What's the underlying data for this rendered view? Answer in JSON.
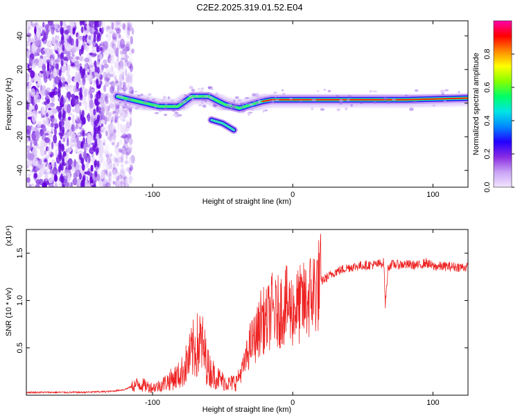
{
  "figure_title": "C2E2.2025.319.01.52.E04",
  "chart_data": [
    {
      "type": "heatmap",
      "xlabel": "Height of straight line (km)",
      "ylabel": "Frequency (Hz)",
      "xlim": [
        -190,
        125
      ],
      "ylim": [
        -50,
        49
      ],
      "xticks": [
        -100,
        0,
        100
      ],
      "yticks": [
        -40,
        -20,
        0,
        20,
        40
      ],
      "colorbar": {
        "label": "Normalized spectral amplitude",
        "range": [
          0,
          1
        ],
        "ticks": [
          0.0,
          0.2,
          0.4,
          0.6,
          0.8
        ],
        "tick_labels": [
          "0.0",
          "0.2",
          "0.4",
          "0.6",
          "0.8"
        ],
        "colormap": [
          "#f2e6ff",
          "#c9a3f5",
          "#8a2be2",
          "#2200ff",
          "#0088ff",
          "#00e5e5",
          "#00ff66",
          "#88ff00",
          "#ffff00",
          "#ff8800",
          "#ff0000",
          "#ff00aa"
        ]
      },
      "features": [
        {
          "name": "broadband noise",
          "x_range": [
            -190,
            -120
          ],
          "y_range": [
            -50,
            49
          ]
        },
        {
          "name": "main trace",
          "points": [
            [
              -125,
              4
            ],
            [
              -110,
              1
            ],
            [
              -95,
              -2
            ],
            [
              -82,
              -2
            ],
            [
              -72,
              4
            ],
            [
              -60,
              4
            ],
            [
              -48,
              -1
            ],
            [
              -38,
              -3
            ],
            [
              -30,
              -1
            ],
            [
              -22,
              1
            ],
            [
              -15,
              2
            ],
            [
              0,
              2
            ],
            [
              40,
              2
            ],
            [
              80,
              2
            ],
            [
              125,
              3
            ]
          ]
        },
        {
          "name": "secondary branch",
          "points": [
            [
              -58,
              -10
            ],
            [
              -50,
              -12
            ],
            [
              -42,
              -16
            ]
          ]
        }
      ]
    },
    {
      "type": "line",
      "xlabel": "Height of straight line (km)",
      "ylabel": "SNR (10 * v/v)",
      "y_multiplier": "(x10⁴)",
      "xlim": [
        -190,
        125
      ],
      "ylim": [
        0,
        1.75
      ],
      "xticks": [
        -100,
        0,
        100
      ],
      "yticks": [
        0.5,
        1.0,
        1.5
      ],
      "ytick_labels": [
        "0.5",
        "1.0",
        "1.5"
      ],
      "color": "#ee2222",
      "series": [
        {
          "x": [
            -190,
            -170,
            -150,
            -130,
            -120,
            -110,
            -100,
            -95,
            -90,
            -80,
            -75,
            -70,
            -65,
            -60,
            -55,
            -50,
            -45,
            -40,
            -35,
            -30,
            -27,
            -24,
            -22,
            -20,
            -18,
            -15,
            -12,
            -8,
            -5,
            0,
            5,
            10,
            15,
            20,
            30,
            40,
            50,
            60,
            65,
            66,
            68,
            70,
            80,
            90,
            95,
            100,
            110,
            125
          ],
          "y": [
            0.03,
            0.03,
            0.03,
            0.04,
            0.06,
            0.12,
            0.08,
            0.1,
            0.14,
            0.22,
            0.35,
            0.5,
            0.55,
            0.28,
            0.2,
            0.15,
            0.12,
            0.15,
            0.3,
            0.55,
            0.6,
            0.7,
            0.85,
            0.75,
            0.8,
            0.9,
            0.85,
            0.92,
            0.95,
            0.9,
            0.95,
            1.0,
            1.1,
            1.2,
            1.3,
            1.35,
            1.37,
            1.38,
            1.4,
            0.95,
            1.35,
            1.38,
            1.38,
            1.37,
            1.4,
            1.36,
            1.36,
            1.35
          ]
        }
      ]
    }
  ]
}
